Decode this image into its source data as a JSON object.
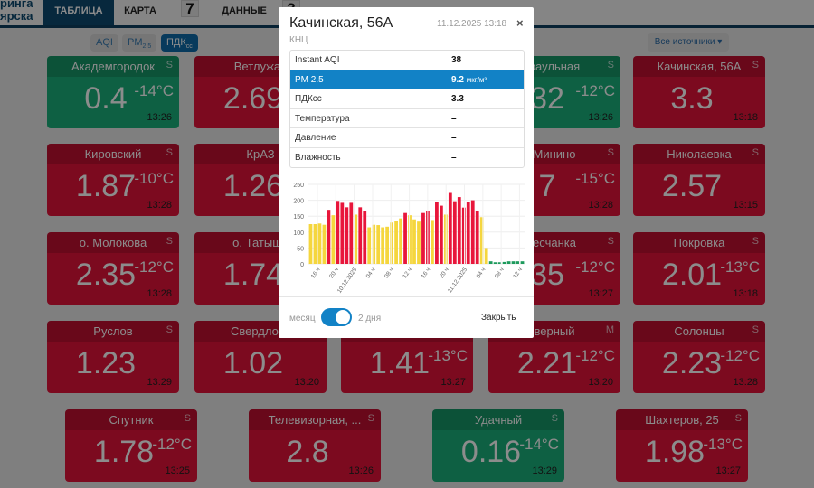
{
  "header": {
    "brand_line1": "ринга",
    "brand_line2": "ярска",
    "tabs": [
      {
        "label": "ТАБЛИЦА",
        "active": true
      },
      {
        "label": "КАРТА"
      },
      {
        "label": "ДАННЫЕ"
      }
    ],
    "badge_karta": "7",
    "badge_data": "3"
  },
  "filters": {
    "aqi": "AQI",
    "pm_main": "PM",
    "pm_sub": "2.5",
    "pdk_main": "ПДК",
    "pdk_sub": "сс",
    "sources": "Все источники ▾"
  },
  "tiles": [
    {
      "name": "Академгородок",
      "src": "S",
      "value": "0.4",
      "temp": "-14°C",
      "time": "13:26",
      "status": "green"
    },
    {
      "name": "Ветлужан",
      "src": "",
      "value": "2.69",
      "temp": "",
      "time": "",
      "status": "red"
    },
    {
      "name": "",
      "src": "",
      "value": "",
      "temp": "",
      "time": "",
      "status": "red"
    },
    {
      "name": "раульная",
      "src": "S",
      "value": "32",
      "temp": "-12°C",
      "time": "13:26",
      "status": "green"
    },
    {
      "name": "Качинская, 56А",
      "src": "S",
      "value": "3.3",
      "temp": "",
      "time": "13:18",
      "status": "red"
    },
    {
      "name": "Кировский",
      "src": "S",
      "value": "1.87",
      "temp": "-10°C",
      "time": "13:28",
      "status": "red"
    },
    {
      "name": "КрАЗ",
      "src": "",
      "value": "1.26",
      "temp": "",
      "time": "",
      "status": "red"
    },
    {
      "name": "",
      "src": "",
      "value": "",
      "temp": "",
      "time": "",
      "status": "red"
    },
    {
      "name": "Минино",
      "src": "S",
      "value": "7",
      "temp": "-15°C",
      "time": "13:28",
      "status": "red"
    },
    {
      "name": "Николаевка",
      "src": "S",
      "value": "2.57",
      "temp": "",
      "time": "13:15",
      "status": "red"
    },
    {
      "name": "о. Молокова",
      "src": "S",
      "value": "2.35",
      "temp": "-12°C",
      "time": "13:28",
      "status": "red"
    },
    {
      "name": "о. Татыше",
      "src": "",
      "value": "1.74",
      "temp": "",
      "time": "",
      "status": "red"
    },
    {
      "name": "",
      "src": "",
      "value": "",
      "temp": "",
      "time": "",
      "status": "red"
    },
    {
      "name": "есчанка",
      "src": "S",
      "value": "35",
      "temp": "-12°C",
      "time": "13:27",
      "status": "red"
    },
    {
      "name": "Покровка",
      "src": "S",
      "value": "2.01",
      "temp": "-13°C",
      "time": "13:18",
      "status": "red"
    },
    {
      "name": "Руслов",
      "src": "S",
      "value": "1.23",
      "temp": "",
      "time": "13:29",
      "status": "red"
    },
    {
      "name": "Свердловс",
      "src": "",
      "value": "1.02",
      "temp": "",
      "time": "13:20",
      "status": "red"
    },
    {
      "name": "",
      "src": "",
      "value": "1.41",
      "temp": "-13°C",
      "time": "13:27",
      "status": "red"
    },
    {
      "name": "верный",
      "src": "M",
      "value": "2.21",
      "temp": "-12°C",
      "time": "13:20",
      "status": "red"
    },
    {
      "name": "Солонцы",
      "src": "S",
      "value": "2.23",
      "temp": "-12°C",
      "time": "13:28",
      "status": "red"
    },
    {
      "name": "Спутник",
      "src": "S",
      "value": "1.78",
      "temp": "-12°C",
      "time": "13:25",
      "status": "red"
    },
    {
      "name": "Телевизорная, ...",
      "src": "S",
      "value": "2.8",
      "temp": "",
      "time": "13:26",
      "status": "red"
    },
    {
      "name": "Удачный",
      "src": "S",
      "value": "0.16",
      "temp": "-14°C",
      "time": "13:29",
      "status": "green"
    },
    {
      "name": "Шахтеров, 25",
      "src": "S",
      "value": "1.98",
      "temp": "-13°C",
      "time": "13:27",
      "status": "red"
    }
  ],
  "modal": {
    "title": "Качинская, 56А",
    "date": "11.12.2025 13:18",
    "close": "×",
    "subtitle": "КНЦ",
    "rows": [
      {
        "k": "Instant AQI",
        "v": "38",
        "u": ""
      },
      {
        "k": "PM 2.5",
        "v": "9.2",
        "u": "мкг/м³",
        "selected": true
      },
      {
        "k": "ПДКсс",
        "v": "3.3",
        "u": ""
      },
      {
        "k": "Температура",
        "v": "–",
        "u": ""
      },
      {
        "k": "Давление",
        "v": "–",
        "u": ""
      },
      {
        "k": "Влажность",
        "v": "–",
        "u": ""
      }
    ],
    "toggle_left": "месяц",
    "toggle_right": "2 дня",
    "toggle_on": true,
    "close_button": "Закрыть"
  },
  "colors": {
    "yellow": "#f5d63d",
    "red": "#e8163b",
    "green": "#1d9a5c"
  },
  "chart_data": {
    "type": "bar",
    "ylim": [
      0,
      250
    ],
    "yticks": [
      0,
      50,
      100,
      150,
      200,
      250
    ],
    "xticks": [
      "16 ч",
      "20 ч",
      "10.12.2025",
      "04 ч",
      "08 ч",
      "12 ч",
      "16 ч",
      "20 ч",
      "11.12.2025",
      "04 ч",
      "08 ч",
      "12 ч"
    ],
    "values": [
      125,
      125,
      127,
      123,
      170,
      153,
      198,
      192,
      178,
      192,
      155,
      178,
      167,
      115,
      123,
      122,
      115,
      117,
      130,
      135,
      143,
      160,
      153,
      140,
      133,
      160,
      167,
      138,
      195,
      183,
      155,
      223,
      197,
      210,
      177,
      195,
      200,
      167,
      147,
      50,
      8,
      5,
      5,
      6,
      8,
      8,
      8,
      8
    ],
    "levels": [
      "y",
      "y",
      "y",
      "y",
      "r",
      "y",
      "r",
      "r",
      "r",
      "r",
      "y",
      "r",
      "r",
      "y",
      "y",
      "y",
      "y",
      "y",
      "y",
      "y",
      "y",
      "r",
      "y",
      "y",
      "y",
      "r",
      "r",
      "y",
      "r",
      "r",
      "y",
      "r",
      "r",
      "r",
      "r",
      "r",
      "r",
      "r",
      "y",
      "y",
      "g",
      "g",
      "g",
      "g",
      "g",
      "g",
      "g",
      "g"
    ]
  }
}
